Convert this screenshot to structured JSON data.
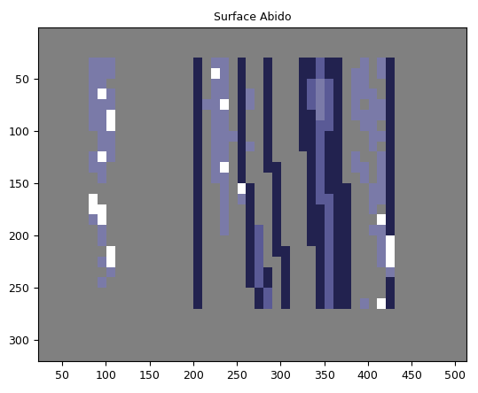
{
  "chart_data": {
    "type": "image",
    "title": "Surface Abido",
    "xlim": [
      22.5,
      512.5
    ],
    "ylim": [
      320.5,
      0.5
    ],
    "xticks": [
      50,
      100,
      150,
      200,
      250,
      300,
      350,
      400,
      450,
      500
    ],
    "yticks": [
      50,
      100,
      150,
      200,
      250,
      300
    ],
    "cells_x_range": [
      80,
      440
    ],
    "cells_y_range": [
      30,
      270
    ],
    "colors": [
      "#808080",
      "#7a7aa8",
      "#5a5a96",
      "#22224f",
      "#ffffff"
    ],
    "cells": [
      [
        1,
        1,
        1,
        0,
        0,
        0,
        0,
        0,
        0,
        0,
        0,
        0,
        3,
        0,
        1,
        1,
        0,
        3,
        0,
        0,
        3,
        0,
        0,
        0,
        3,
        3,
        2,
        3,
        3,
        0,
        0,
        1,
        0,
        1,
        3,
        0
      ],
      [
        1,
        1,
        1,
        0,
        0,
        0,
        0,
        0,
        0,
        0,
        0,
        0,
        3,
        0,
        4,
        1,
        0,
        3,
        0,
        0,
        3,
        0,
        0,
        0,
        3,
        3,
        2,
        3,
        3,
        0,
        1,
        1,
        0,
        1,
        3,
        0
      ],
      [
        1,
        1,
        0,
        0,
        0,
        0,
        0,
        0,
        0,
        0,
        0,
        0,
        3,
        0,
        1,
        1,
        0,
        3,
        0,
        0,
        3,
        0,
        0,
        0,
        3,
        2,
        1,
        2,
        3,
        0,
        1,
        1,
        0,
        0,
        3,
        0
      ],
      [
        1,
        4,
        1,
        0,
        0,
        0,
        0,
        0,
        0,
        0,
        0,
        0,
        3,
        0,
        1,
        1,
        0,
        3,
        1,
        0,
        3,
        0,
        0,
        0,
        3,
        2,
        1,
        2,
        3,
        0,
        1,
        1,
        1,
        0,
        3,
        0
      ],
      [
        1,
        1,
        1,
        0,
        0,
        0,
        0,
        0,
        0,
        0,
        0,
        0,
        3,
        1,
        1,
        4,
        0,
        3,
        1,
        0,
        3,
        0,
        0,
        0,
        3,
        2,
        1,
        2,
        3,
        0,
        1,
        0,
        1,
        1,
        3,
        0
      ],
      [
        1,
        1,
        4,
        0,
        0,
        0,
        0,
        0,
        0,
        0,
        0,
        0,
        3,
        0,
        1,
        1,
        0,
        3,
        0,
        0,
        3,
        0,
        0,
        0,
        3,
        3,
        1,
        2,
        3,
        0,
        1,
        1,
        1,
        1,
        3,
        0
      ],
      [
        1,
        1,
        4,
        0,
        0,
        0,
        0,
        0,
        0,
        0,
        0,
        0,
        3,
        0,
        1,
        1,
        0,
        3,
        0,
        0,
        3,
        0,
        0,
        0,
        3,
        3,
        2,
        2,
        3,
        0,
        0,
        1,
        1,
        0,
        3,
        0
      ],
      [
        0,
        1,
        1,
        0,
        0,
        0,
        0,
        0,
        0,
        0,
        0,
        0,
        3,
        0,
        1,
        1,
        1,
        3,
        0,
        0,
        3,
        0,
        0,
        0,
        3,
        3,
        2,
        3,
        3,
        0,
        0,
        0,
        1,
        1,
        3,
        0
      ],
      [
        0,
        1,
        1,
        0,
        0,
        0,
        0,
        0,
        0,
        0,
        0,
        0,
        3,
        0,
        1,
        1,
        0,
        3,
        1,
        0,
        3,
        0,
        0,
        0,
        3,
        3,
        2,
        3,
        3,
        0,
        0,
        0,
        1,
        0,
        3,
        0
      ],
      [
        1,
        4,
        1,
        0,
        0,
        0,
        0,
        0,
        0,
        0,
        0,
        0,
        3,
        0,
        1,
        1,
        0,
        3,
        0,
        0,
        3,
        0,
        0,
        0,
        0,
        3,
        2,
        3,
        3,
        0,
        1,
        0,
        0,
        1,
        3,
        0
      ],
      [
        1,
        1,
        0,
        0,
        0,
        0,
        0,
        0,
        0,
        0,
        0,
        0,
        3,
        0,
        1,
        4,
        0,
        3,
        0,
        0,
        3,
        3,
        0,
        0,
        0,
        3,
        2,
        3,
        3,
        0,
        1,
        1,
        0,
        1,
        3,
        0
      ],
      [
        0,
        1,
        0,
        0,
        0,
        0,
        0,
        0,
        0,
        0,
        0,
        0,
        3,
        0,
        1,
        1,
        0,
        3,
        0,
        0,
        0,
        3,
        0,
        0,
        0,
        3,
        2,
        3,
        3,
        0,
        0,
        1,
        0,
        1,
        3,
        0
      ],
      [
        0,
        0,
        0,
        0,
        0,
        0,
        0,
        0,
        0,
        0,
        0,
        0,
        3,
        0,
        0,
        1,
        0,
        4,
        3,
        0,
        0,
        3,
        0,
        0,
        0,
        3,
        2,
        3,
        3,
        3,
        0,
        0,
        1,
        1,
        3,
        0
      ],
      [
        4,
        0,
        0,
        0,
        0,
        0,
        0,
        0,
        0,
        0,
        0,
        0,
        3,
        0,
        0,
        1,
        0,
        1,
        3,
        0,
        0,
        3,
        0,
        0,
        0,
        3,
        2,
        2,
        3,
        3,
        0,
        0,
        1,
        1,
        3,
        0
      ],
      [
        4,
        4,
        0,
        0,
        0,
        0,
        0,
        0,
        0,
        0,
        0,
        0,
        3,
        0,
        0,
        1,
        0,
        0,
        3,
        0,
        0,
        3,
        0,
        0,
        0,
        3,
        3,
        2,
        3,
        3,
        0,
        0,
        1,
        0,
        3,
        0
      ],
      [
        1,
        4,
        0,
        0,
        0,
        0,
        0,
        0,
        0,
        0,
        0,
        0,
        3,
        0,
        0,
        1,
        0,
        0,
        3,
        0,
        0,
        3,
        0,
        0,
        0,
        3,
        3,
        2,
        3,
        3,
        0,
        0,
        0,
        4,
        3,
        0
      ],
      [
        0,
        1,
        0,
        0,
        0,
        0,
        0,
        0,
        0,
        0,
        0,
        0,
        3,
        0,
        0,
        1,
        0,
        0,
        3,
        2,
        0,
        3,
        0,
        0,
        0,
        3,
        3,
        2,
        3,
        3,
        0,
        0,
        1,
        1,
        3,
        0
      ],
      [
        0,
        1,
        0,
        0,
        0,
        0,
        0,
        0,
        0,
        0,
        0,
        0,
        3,
        0,
        0,
        0,
        0,
        0,
        3,
        2,
        0,
        3,
        0,
        0,
        0,
        3,
        3,
        2,
        3,
        3,
        0,
        0,
        0,
        1,
        4,
        0
      ],
      [
        0,
        0,
        4,
        0,
        0,
        0,
        0,
        0,
        0,
        0,
        0,
        0,
        3,
        0,
        0,
        0,
        0,
        0,
        3,
        2,
        0,
        3,
        3,
        0,
        0,
        0,
        3,
        2,
        3,
        3,
        0,
        0,
        0,
        1,
        4,
        0
      ],
      [
        0,
        1,
        4,
        0,
        0,
        0,
        0,
        0,
        0,
        0,
        0,
        0,
        3,
        0,
        0,
        0,
        0,
        0,
        3,
        2,
        0,
        0,
        3,
        0,
        0,
        0,
        3,
        2,
        3,
        3,
        0,
        0,
        0,
        1,
        4,
        0
      ],
      [
        0,
        0,
        1,
        0,
        0,
        0,
        0,
        0,
        0,
        0,
        0,
        0,
        3,
        0,
        0,
        0,
        0,
        0,
        3,
        2,
        3,
        0,
        3,
        0,
        0,
        0,
        3,
        2,
        3,
        3,
        0,
        0,
        0,
        0,
        1,
        0
      ],
      [
        0,
        1,
        0,
        0,
        0,
        0,
        0,
        0,
        0,
        0,
        0,
        0,
        3,
        0,
        0,
        0,
        0,
        0,
        3,
        2,
        3,
        0,
        3,
        0,
        0,
        0,
        3,
        2,
        3,
        3,
        0,
        0,
        0,
        0,
        3,
        0
      ],
      [
        0,
        0,
        0,
        0,
        0,
        0,
        0,
        0,
        0,
        0,
        0,
        0,
        3,
        0,
        0,
        0,
        0,
        0,
        0,
        3,
        2,
        0,
        3,
        0,
        0,
        0,
        3,
        2,
        3,
        3,
        0,
        0,
        0,
        0,
        3,
        0
      ],
      [
        0,
        0,
        0,
        0,
        0,
        0,
        0,
        0,
        0,
        0,
        0,
        0,
        3,
        0,
        0,
        0,
        0,
        0,
        0,
        3,
        2,
        0,
        3,
        0,
        0,
        0,
        3,
        2,
        3,
        3,
        0,
        1,
        0,
        4,
        3,
        0
      ]
    ]
  }
}
